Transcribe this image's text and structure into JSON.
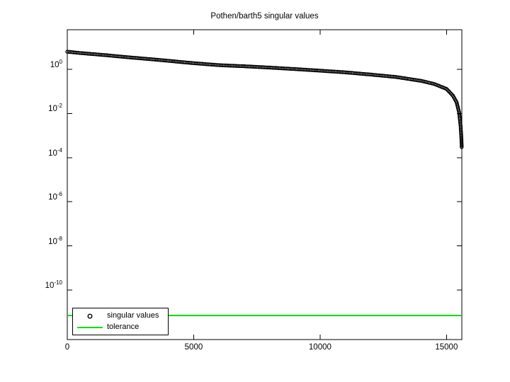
{
  "figure": {
    "background": "#ffffff",
    "axis_color": "#000000"
  },
  "chart_data": {
    "type": "scatter",
    "scale": "semilogy",
    "title": "Pothen/barth5 singular values",
    "xlabel": "",
    "ylabel": "",
    "grid": false,
    "xlim": [
      0,
      15606
    ],
    "ylim_log10": [
      -12.3,
      1.8
    ],
    "x_ticks": [
      0,
      5000,
      10000,
      15000
    ],
    "x_tick_labels": [
      "0",
      "5000",
      "10000",
      "15000"
    ],
    "y_ticks_log10": [
      0,
      -2,
      -4,
      -6,
      -8,
      -10
    ],
    "y_tick_base": "10",
    "legend": {
      "position": "southwest",
      "entries": [
        {
          "label": "singular values",
          "glyph": "circle-marker",
          "color": "#000000"
        },
        {
          "label": "tolerance",
          "glyph": "line",
          "color": "#00e000"
        }
      ]
    },
    "series": [
      {
        "name": "singular values",
        "style": "open-circle-markers",
        "color": "#000000",
        "points": [
          [
            1,
            6.3
          ],
          [
            500,
            5.5
          ],
          [
            1500,
            4.4
          ],
          [
            2500,
            3.45
          ],
          [
            3500,
            2.75
          ],
          [
            4500,
            2.15
          ],
          [
            5000,
            1.9
          ],
          [
            6000,
            1.55
          ],
          [
            7000,
            1.38
          ],
          [
            8000,
            1.2
          ],
          [
            9000,
            1.03
          ],
          [
            10000,
            0.87
          ],
          [
            11000,
            0.73
          ],
          [
            12000,
            0.58
          ],
          [
            13000,
            0.45
          ],
          [
            14000,
            0.3
          ],
          [
            14500,
            0.22
          ],
          [
            15000,
            0.13
          ],
          [
            15250,
            0.065
          ],
          [
            15400,
            0.032
          ],
          [
            15500,
            0.011
          ],
          [
            15560,
            0.0025
          ],
          [
            15590,
            0.0007
          ],
          [
            15602,
            0.00028
          ]
        ]
      },
      {
        "name": "tolerance",
        "style": "hline",
        "color": "#00e000",
        "value": 7e-12
      }
    ]
  }
}
